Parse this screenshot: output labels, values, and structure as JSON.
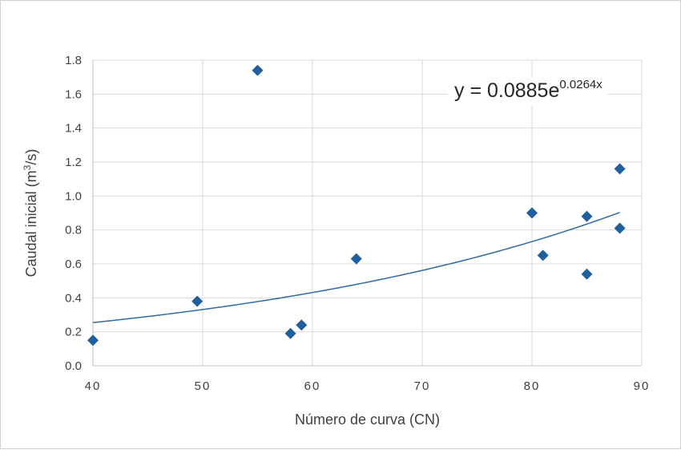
{
  "chart_data": {
    "type": "scatter",
    "xlabel": "Número de curva (CN)",
    "ylabel_base": "Caudal inicial (m",
    "ylabel_sup": "3",
    "ylabel_end": "/s)",
    "xlim": [
      40,
      90
    ],
    "ylim": [
      0,
      1.8
    ],
    "x_ticks": [
      "40",
      "50",
      "60",
      "70",
      "80",
      "90"
    ],
    "y_ticks": [
      "0.0",
      "0.2",
      "0.4",
      "0.6",
      "0.8",
      "1.0",
      "1.2",
      "1.4",
      "1.6",
      "1.8"
    ],
    "grid": true,
    "legend": "none",
    "series": [
      {
        "marker": "diamond",
        "color": "#1f5f9b",
        "points": [
          {
            "x": 40,
            "y": 0.15
          },
          {
            "x": 49.5,
            "y": 0.38
          },
          {
            "x": 55,
            "y": 1.74
          },
          {
            "x": 58,
            "y": 0.19
          },
          {
            "x": 59,
            "y": 0.24
          },
          {
            "x": 64,
            "y": 0.63
          },
          {
            "x": 80,
            "y": 0.9
          },
          {
            "x": 81,
            "y": 0.65
          },
          {
            "x": 85,
            "y": 0.88
          },
          {
            "x": 85,
            "y": 0.54
          },
          {
            "x": 88,
            "y": 1.16
          },
          {
            "x": 88,
            "y": 0.81
          }
        ]
      }
    ],
    "trendline": {
      "type": "exponential",
      "a": 0.0885,
      "b": 0.0264,
      "x_range": [
        40,
        88
      ],
      "color": "#2e6aa3",
      "equation_main": "y = 0.0885e",
      "equation_exponent": "0.0264x"
    }
  }
}
